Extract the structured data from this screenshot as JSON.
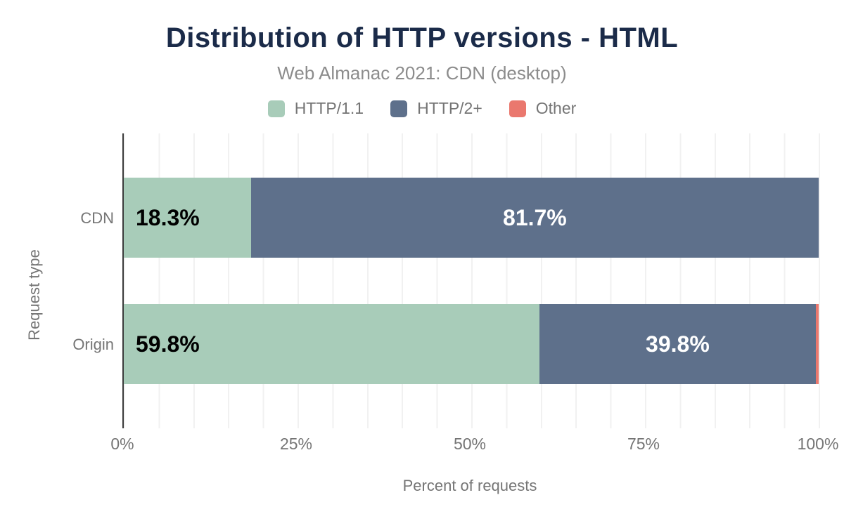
{
  "header": {
    "title": "Distribution of HTTP versions - HTML",
    "subtitle": "Web Almanac 2021: CDN (desktop)"
  },
  "legend": [
    {
      "label": "HTTP/1.1",
      "color": "#a8ccb9"
    },
    {
      "label": "HTTP/2+",
      "color": "#5e708b"
    },
    {
      "label": "Other",
      "color": "#ea786e"
    }
  ],
  "chart_data": {
    "type": "bar",
    "orientation": "horizontal",
    "stacked": true,
    "title": "Distribution of HTTP versions - HTML",
    "subtitle": "Web Almanac 2021: CDN (desktop)",
    "categories": [
      "CDN",
      "Origin"
    ],
    "series": [
      {
        "name": "HTTP/1.1",
        "color": "#a8ccb9",
        "values": [
          18.3,
          59.8
        ]
      },
      {
        "name": "HTTP/2+",
        "color": "#5e708b",
        "values": [
          81.7,
          39.8
        ]
      },
      {
        "name": "Other",
        "color": "#ea786e",
        "values": [
          0.0,
          0.4
        ]
      }
    ],
    "value_labels": [
      [
        "18.3%",
        "81.7%",
        ""
      ],
      [
        "59.8%",
        "39.8%",
        ""
      ]
    ],
    "xlabel": "Percent of requests",
    "ylabel": "Request type",
    "xlim": [
      0,
      100
    ],
    "x_ticks": [
      "0%",
      "25%",
      "50%",
      "75%",
      "100%"
    ],
    "grid": "vertical lines every 5%",
    "legend_position": "top"
  },
  "colors": {
    "title": "#1b2b49",
    "axis_text": "#757575",
    "subtitle_text": "#8c8c8c",
    "gridline": "#f1f1f1",
    "axis_line": "#3b3b3b",
    "label_on_light": "#000000",
    "label_on_dark": "#ffffff",
    "background": "#ffffff"
  }
}
